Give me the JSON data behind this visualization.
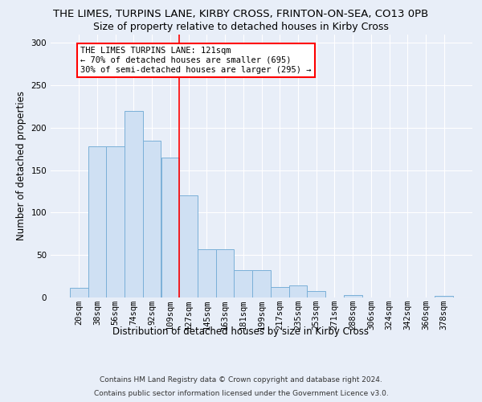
{
  "title1": "THE LIMES, TURPINS LANE, KIRBY CROSS, FRINTON-ON-SEA, CO13 0PB",
  "title2": "Size of property relative to detached houses in Kirby Cross",
  "xlabel": "Distribution of detached houses by size in Kirby Cross",
  "ylabel": "Number of detached properties",
  "categories": [
    "20sqm",
    "38sqm",
    "56sqm",
    "74sqm",
    "92sqm",
    "109sqm",
    "127sqm",
    "145sqm",
    "163sqm",
    "181sqm",
    "199sqm",
    "217sqm",
    "235sqm",
    "253sqm",
    "271sqm",
    "288sqm",
    "306sqm",
    "324sqm",
    "342sqm",
    "360sqm",
    "378sqm"
  ],
  "values": [
    11,
    178,
    178,
    220,
    185,
    165,
    120,
    57,
    57,
    32,
    32,
    12,
    14,
    8,
    0,
    3,
    0,
    0,
    0,
    0,
    2
  ],
  "bar_color": "#cfe0f3",
  "bar_edge_color": "#7ab0d8",
  "red_line_x": 5.5,
  "annotation_line1": "THE LIMES TURPINS LANE: 121sqm",
  "annotation_line2": "← 70% of detached houses are smaller (695)",
  "annotation_line3": "30% of semi-detached houses are larger (295) →",
  "footnote1": "Contains HM Land Registry data © Crown copyright and database right 2024.",
  "footnote2": "Contains public sector information licensed under the Government Licence v3.0.",
  "ylim": [
    0,
    310
  ],
  "yticks": [
    0,
    50,
    100,
    150,
    200,
    250,
    300
  ],
  "background_color": "#e8eef8",
  "grid_color": "#ffffff",
  "title1_fontsize": 9.5,
  "title2_fontsize": 9.0,
  "tick_fontsize": 7.5,
  "annot_fontsize": 7.5,
  "xlabel_fontsize": 8.5,
  "ylabel_fontsize": 8.5,
  "footnote_fontsize": 6.5
}
